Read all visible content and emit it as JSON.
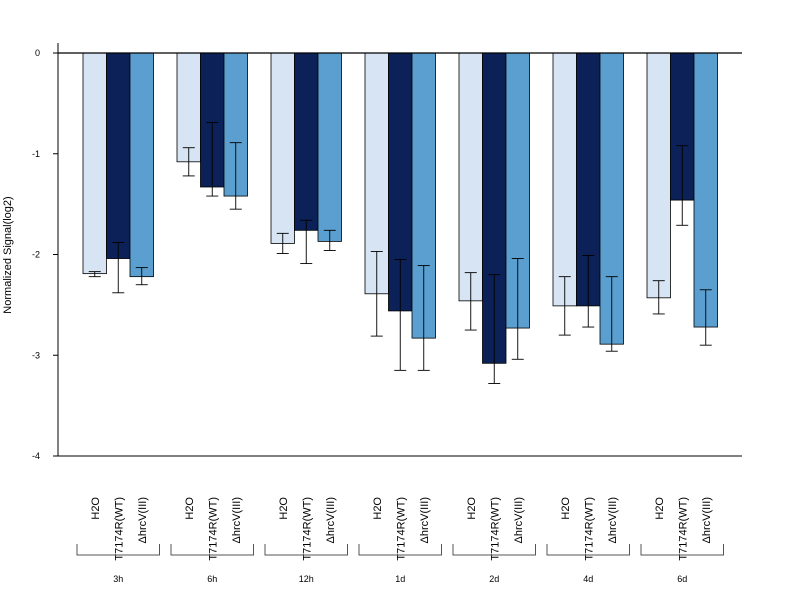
{
  "chart_data": {
    "type": "bar",
    "ylabel": "Normalized Signal(log2)",
    "ylim": [
      -4,
      0
    ],
    "yticks": [
      0,
      -1,
      -2,
      -3,
      -4
    ],
    "groups": [
      "3h",
      "6h",
      "12h",
      "1d",
      "2d",
      "4d",
      "6d"
    ],
    "series": [
      {
        "name": "H2O",
        "color": "#d6e4f3",
        "values": [
          -2.19,
          -1.08,
          -1.89,
          -2.39,
          -2.46,
          -2.51,
          -2.43
        ],
        "err_low": [
          -2.22,
          -1.22,
          -1.99,
          -2.81,
          -2.75,
          -2.8,
          -2.59
        ],
        "err_high": [
          -2.17,
          -0.94,
          -1.79,
          -1.97,
          -2.18,
          -2.22,
          -2.26
        ]
      },
      {
        "name": "T7174R(WT)",
        "color": "#0b2157",
        "values": [
          -2.04,
          -1.33,
          -1.76,
          -2.56,
          -3.08,
          -2.51,
          -1.46
        ],
        "err_low": [
          -2.38,
          -1.42,
          -2.09,
          -3.15,
          -3.28,
          -2.72,
          -1.71
        ],
        "err_high": [
          -1.88,
          -0.69,
          -1.66,
          -2.05,
          -2.2,
          -2.01,
          -0.92
        ]
      },
      {
        "name": "ΔhrcV(III)",
        "color": "#5a9fcf",
        "values": [
          -2.22,
          -1.42,
          -1.87,
          -2.83,
          -2.73,
          -2.89,
          -2.72
        ],
        "err_low": [
          -2.3,
          -1.55,
          -1.96,
          -3.15,
          -3.04,
          -2.96,
          -2.9
        ],
        "err_high": [
          -2.13,
          -0.89,
          -1.76,
          -2.11,
          -2.04,
          -2.22,
          -2.35
        ]
      }
    ]
  }
}
